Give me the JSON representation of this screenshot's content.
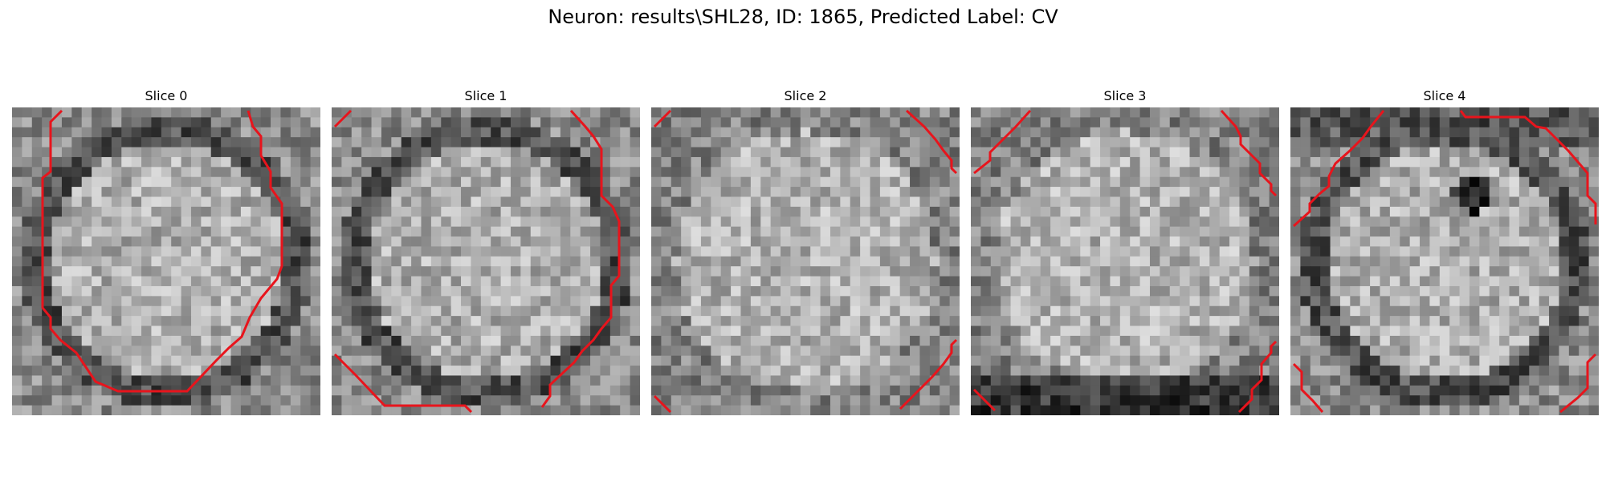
{
  "figure": {
    "title": "Neuron: results\\SHL28, ID: 1865, Predicted Label: CV"
  },
  "contour_color": "#e8141c",
  "slices": [
    {
      "title": "Slice 0",
      "pattern": "ring",
      "seed": 11
    },
    {
      "title": "Slice 1",
      "pattern": "ring",
      "seed": 23
    },
    {
      "title": "Slice 2",
      "pattern": "soft",
      "seed": 37
    },
    {
      "title": "Slice 3",
      "pattern": "soft-dark-bottom",
      "seed": 51
    },
    {
      "title": "Slice 4",
      "pattern": "ring-hole",
      "seed": 67
    }
  ]
}
